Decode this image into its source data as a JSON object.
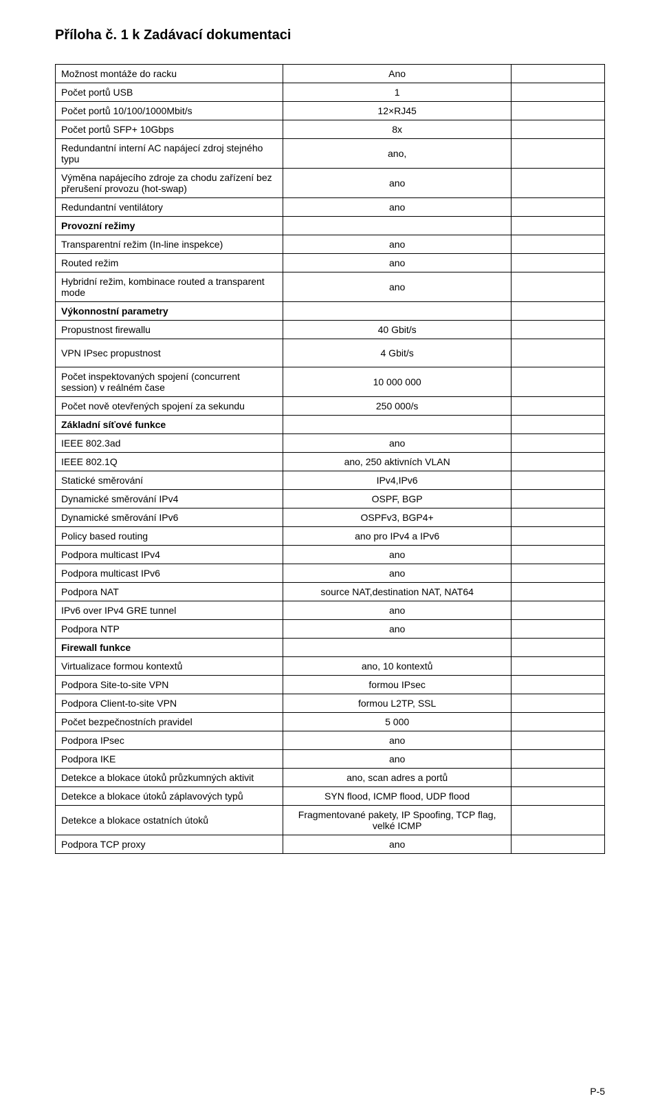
{
  "document": {
    "title": "Příloha č. 1 k Zadávací dokumentaci",
    "page_number": "P-5"
  },
  "rows": [
    {
      "param": "Možnost montáže do racku",
      "value": "Ano",
      "bold": false
    },
    {
      "param": "Počet portů USB",
      "value": "1",
      "bold": false
    },
    {
      "param": "Počet portů 10/100/1000Mbit/s",
      "value": "12×RJ45",
      "bold": false
    },
    {
      "param": "Počet portů SFP+ 10Gbps",
      "value": "8x",
      "bold": false
    },
    {
      "param": "Redundantní interní AC napájecí zdroj stejného typu",
      "value": "ano,",
      "bold": false
    },
    {
      "param": "Výměna napájecího zdroje za chodu zařízení bez přerušení provozu (hot-swap)",
      "value": "ano",
      "bold": false
    },
    {
      "param": "Redundantní ventilátory",
      "value": "ano",
      "bold": false
    },
    {
      "param": "Provozní režimy",
      "value": "",
      "bold": true
    },
    {
      "param": "Transparentní režim (In-line inspekce)",
      "value": "ano",
      "bold": false
    },
    {
      "param": "Routed režim",
      "value": "ano",
      "bold": false
    },
    {
      "param": "Hybridní režim, kombinace routed a transparent mode",
      "value": "ano",
      "bold": false
    },
    {
      "param": "Výkonnostní parametry",
      "value": "",
      "bold": true
    },
    {
      "param": "Propustnost firewallu",
      "value": "40 Gbit/s",
      "bold": false
    },
    {
      "param": "VPN IPsec propustnost",
      "value": "4 Gbit/s",
      "bold": false,
      "tall": true
    },
    {
      "param": "Počet inspektovaných spojení (concurrent session) v reálném čase",
      "value": "10 000 000",
      "bold": false
    },
    {
      "param": "Počet nově otevřených spojení za sekundu",
      "value": "250 000/s",
      "bold": false
    },
    {
      "param": "Základní síťové funkce",
      "value": "",
      "bold": true
    },
    {
      "param": "IEEE 802.3ad",
      "value": "ano",
      "bold": false
    },
    {
      "param": "IEEE 802.1Q",
      "value": "ano, 250 aktivních VLAN",
      "bold": false
    },
    {
      "param": "Statické směrování",
      "value": "IPv4,IPv6",
      "bold": false
    },
    {
      "param": "Dynamické směrování IPv4",
      "value": "OSPF, BGP",
      "bold": false
    },
    {
      "param": "Dynamické směrování IPv6",
      "value": "OSPFv3, BGP4+",
      "bold": false
    },
    {
      "param": "Policy based routing",
      "value": "ano pro IPv4 a IPv6",
      "bold": false
    },
    {
      "param": "Podpora multicast IPv4",
      "value": "ano",
      "bold": false
    },
    {
      "param": "Podpora multicast IPv6",
      "value": "ano",
      "bold": false
    },
    {
      "param": "Podpora NAT",
      "value": "source NAT,destination NAT, NAT64",
      "bold": false
    },
    {
      "param": "IPv6 over IPv4 GRE tunnel",
      "value": "ano",
      "bold": false
    },
    {
      "param": "Podpora NTP",
      "value": "ano",
      "bold": false
    },
    {
      "param": "Firewall funkce",
      "value": "",
      "bold": true
    },
    {
      "param": "Virtualizace formou kontextů",
      "value": "ano, 10 kontextů",
      "bold": false
    },
    {
      "param": "Podpora Site-to-site VPN",
      "value": "formou IPsec",
      "bold": false
    },
    {
      "param": "Podpora Client-to-site VPN",
      "value": "formou L2TP, SSL",
      "bold": false
    },
    {
      "param": "Počet bezpečnostních pravidel",
      "value": "5 000",
      "bold": false
    },
    {
      "param": "Podpora IPsec",
      "value": "ano",
      "bold": false
    },
    {
      "param": "Podpora IKE",
      "value": "ano",
      "bold": false
    },
    {
      "param": "Detekce a blokace útoků průzkumných aktivit",
      "value": "ano, scan adres a portů",
      "bold": false
    },
    {
      "param": "Detekce a blokace útoků záplavových typů",
      "value": "SYN flood, ICMP flood, UDP flood",
      "bold": false
    },
    {
      "param": "Detekce a blokace ostatních útoků",
      "value": "Fragmentované pakety, IP Spoofing, TCP flag, velké ICMP",
      "bold": false
    },
    {
      "param": "Podpora TCP proxy",
      "value": "ano",
      "bold": false
    }
  ]
}
